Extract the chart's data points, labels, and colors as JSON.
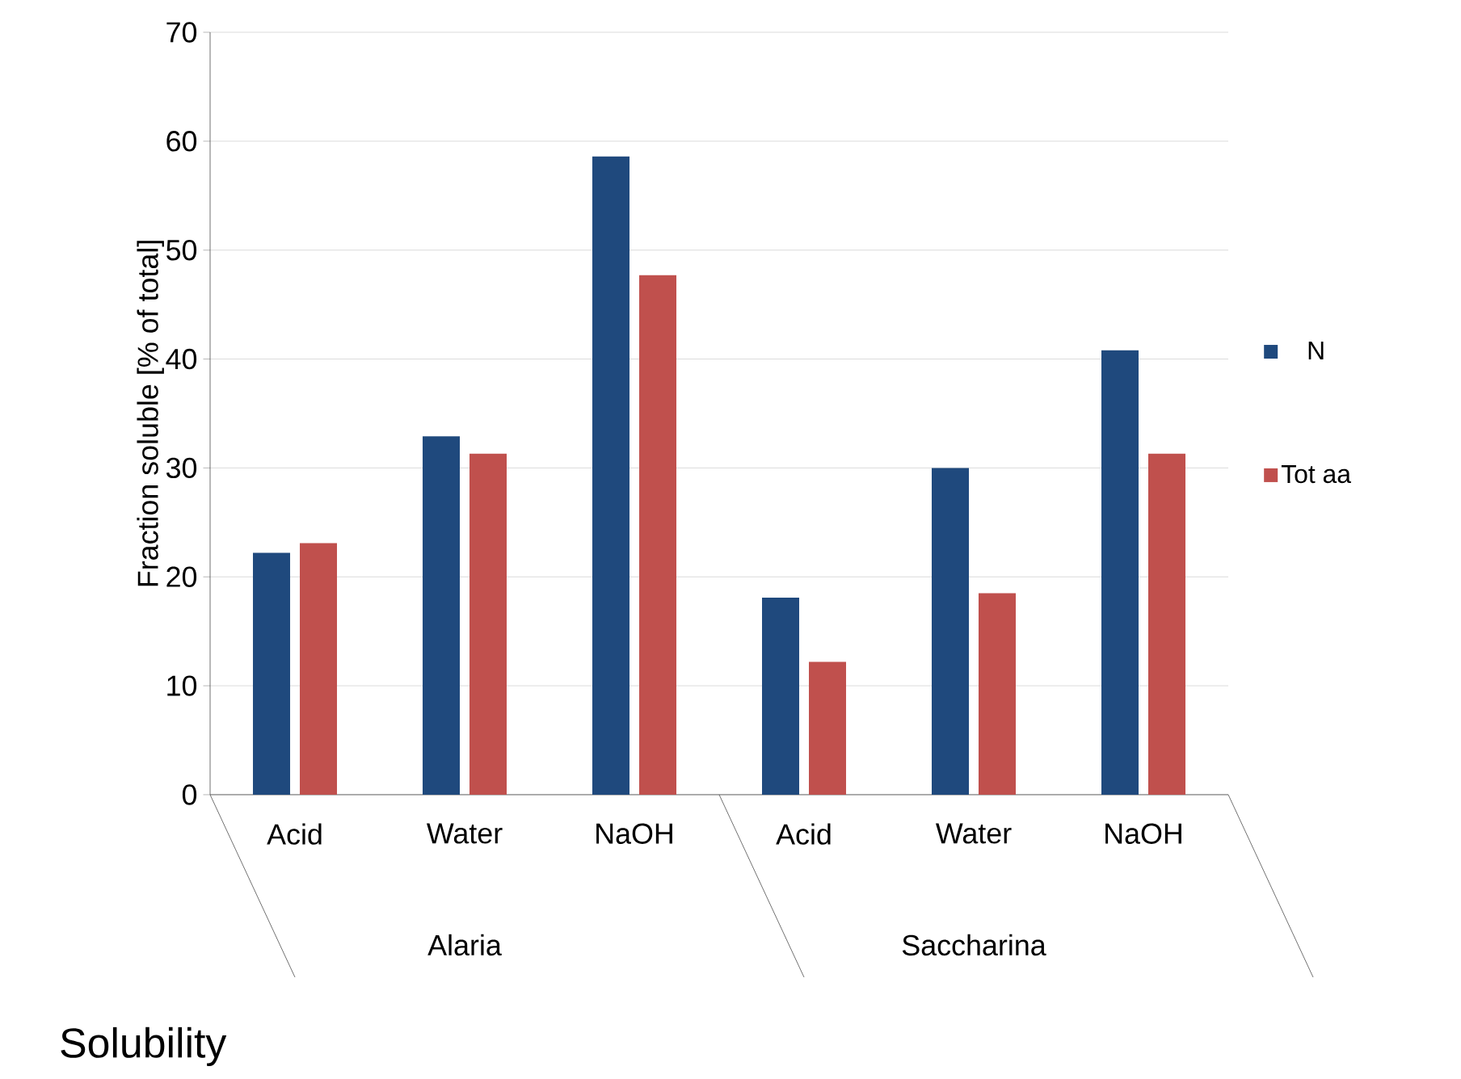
{
  "chart_data": {
    "type": "bar",
    "ylabel": "Fraction soluble [% of total]",
    "xlabel": "Solubility",
    "categories": [
      "Acid",
      "Water",
      "NaOH",
      "Acid",
      "Water",
      "NaOH"
    ],
    "annotations": [
      "Alaria",
      "Saccharina"
    ],
    "series": [
      {
        "name": "N",
        "color": "#1f497d",
        "values": [
          22.2,
          32.9,
          58.6,
          18.1,
          30.0,
          40.8
        ]
      },
      {
        "name": "Tot aa",
        "color": "#c0504d",
        "values": [
          23.1,
          31.3,
          47.7,
          12.2,
          18.5,
          31.3
        ]
      }
    ],
    "ylim": [
      0,
      70
    ],
    "yticks": [
      0,
      10,
      20,
      30,
      40,
      50,
      60,
      70
    ],
    "grid": "y",
    "legend": "right"
  }
}
